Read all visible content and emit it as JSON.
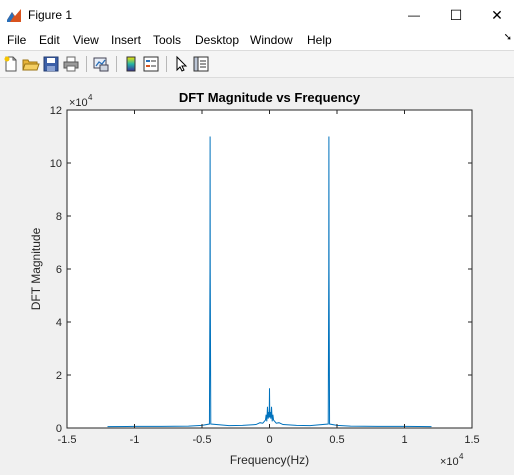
{
  "window": {
    "title": "Figure 1",
    "icon": "matlab-figure-icon",
    "controls": {
      "minimize": "—",
      "maximize": "☐",
      "close": "✕"
    }
  },
  "menubar": {
    "items": [
      "File",
      "Edit",
      "View",
      "Insert",
      "Tools",
      "Desktop",
      "Window",
      "Help"
    ],
    "overflow": "➘"
  },
  "toolbar": {
    "buttons": [
      "new-figure-icon",
      "open-file-icon",
      "save-icon",
      "print-icon",
      "link-plot-icon",
      "colorbar-icon",
      "legend-icon",
      "edit-plot-pointer-icon",
      "property-inspector-icon"
    ]
  },
  "colors": {
    "line": "#0072bd",
    "axes_bg": "#ffffff",
    "figure_bg": "#f0f0f0"
  },
  "chart_data": {
    "type": "line",
    "title": "DFT Magnitude vs Frequency",
    "xlabel": "Frequency(Hz)",
    "ylabel": "DFT Magnitude",
    "x_exponent_label": "×10",
    "x_exponent": "4",
    "y_exponent_label": "×10",
    "y_exponent": "4",
    "xlim": [
      -15000,
      15000
    ],
    "ylim": [
      0,
      120000
    ],
    "x_ticks": [
      -15000,
      -10000,
      -5000,
      0,
      5000,
      10000,
      15000
    ],
    "x_tick_labels": [
      "-1.5",
      "-1",
      "-0.5",
      "0",
      "0.5",
      "1",
      "1.5"
    ],
    "y_ticks": [
      0,
      20000,
      40000,
      60000,
      80000,
      100000,
      120000
    ],
    "y_tick_labels": [
      "0",
      "2",
      "4",
      "6",
      "8",
      "10",
      "12"
    ],
    "grid": false,
    "series": [
      {
        "x": [
          -12000,
          -10000,
          -8000,
          -6000,
          -5000,
          -4450,
          -4410,
          -4400,
          -4390,
          -4350,
          -3000,
          -2000,
          -1000,
          -700,
          -500,
          -300,
          -250,
          -200,
          -150,
          -100,
          -60,
          -20,
          0,
          20,
          60,
          100,
          150,
          200,
          250,
          300,
          500,
          700,
          1000,
          2000,
          3000,
          4350,
          4390,
          4400,
          4410,
          4450,
          5000,
          6000,
          8000,
          10000,
          12000
        ],
        "y": [
          500,
          600,
          600,
          700,
          1000,
          1500,
          60000,
          110000,
          60000,
          1500,
          900,
          1000,
          1300,
          2000,
          1800,
          3000,
          5000,
          2500,
          8000,
          3500,
          6000,
          4000,
          15000,
          4000,
          6000,
          3500,
          8000,
          2500,
          5000,
          3000,
          1800,
          2000,
          1300,
          1000,
          900,
          1500,
          60000,
          110000,
          60000,
          1500,
          1000,
          700,
          600,
          600,
          500
        ]
      }
    ]
  }
}
